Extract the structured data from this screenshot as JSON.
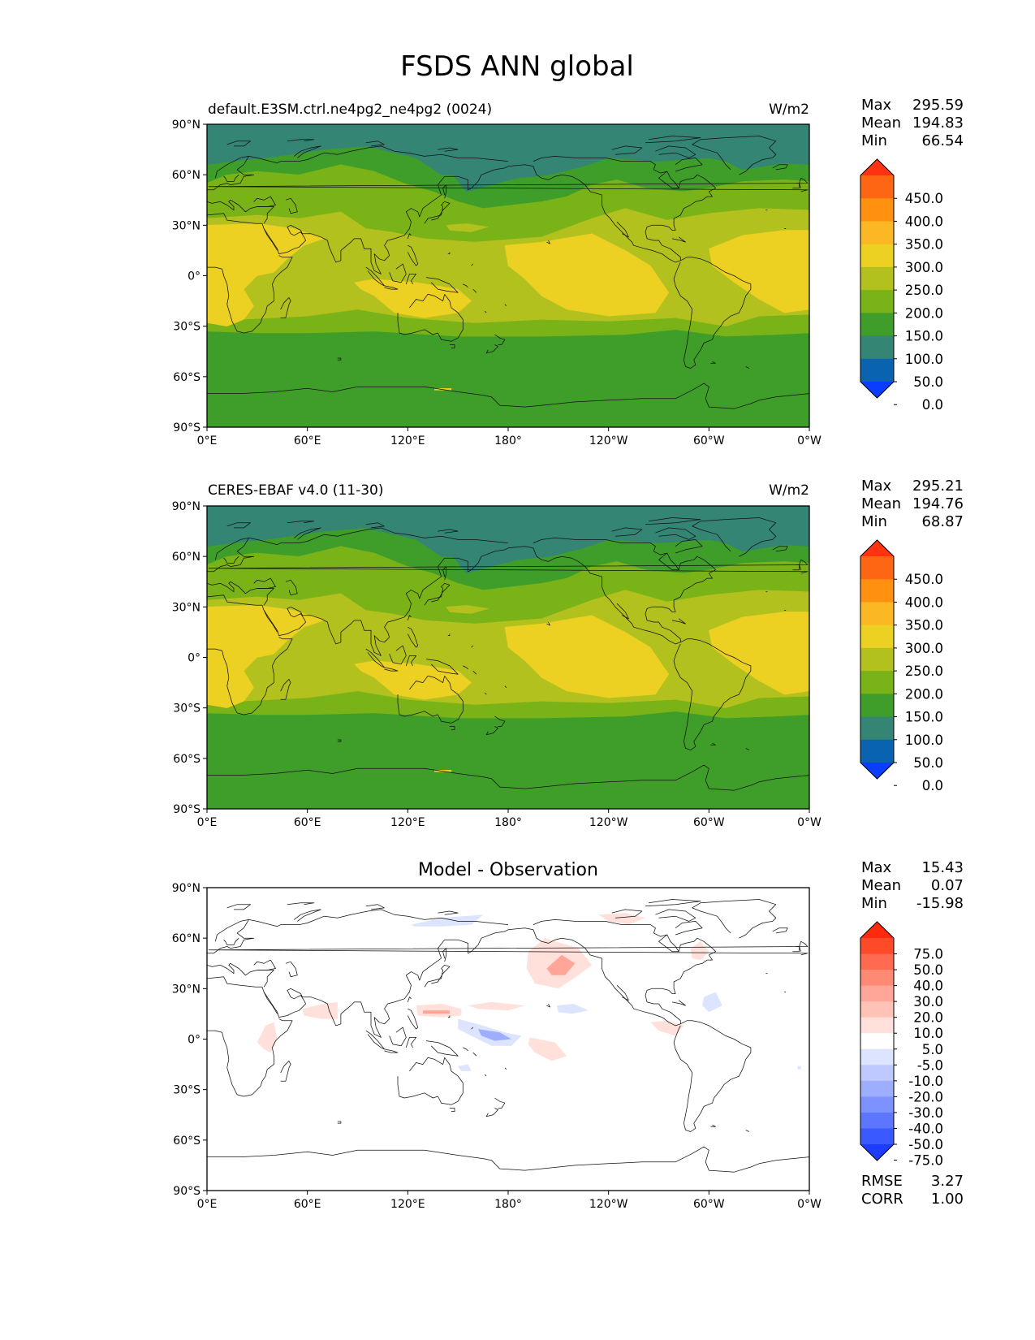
{
  "title": "FSDS ANN global",
  "map_axes": {
    "lon_ticks": [
      "0°E",
      "60°E",
      "120°E",
      "180°",
      "120°W",
      "60°W",
      "0°W"
    ],
    "lat_ticks": [
      "90°N",
      "60°N",
      "30°N",
      "0°",
      "30°S",
      "60°S",
      "90°S"
    ]
  },
  "stats_labels": {
    "max": "Max",
    "mean": "Mean",
    "min": "Min",
    "rmse": "RMSE",
    "corr": "CORR"
  },
  "panels": [
    {
      "title": "default.E3SM.ctrl.ne4pg2_ne4pg2 (0024)",
      "units": "W/m2",
      "stats": {
        "max": "295.59",
        "mean": "194.83",
        "min": "66.54"
      }
    },
    {
      "title": "CERES-EBAF v4.0 (11-30)",
      "units": "W/m2",
      "stats": {
        "max": "295.21",
        "mean": "194.76",
        "min": "68.87"
      }
    },
    {
      "title": "Model - Observation",
      "units": "",
      "stats": {
        "max": "15.43",
        "mean": "0.07",
        "min": "-15.98",
        "rmse": "3.27",
        "corr": "1.00"
      }
    }
  ],
  "colorbar_field": {
    "labels": [
      "450.0",
      "400.0",
      "350.0",
      "300.0",
      "250.0",
      "200.0",
      "150.0",
      "100.0",
      "50.0",
      "0.0"
    ],
    "colors_top_to_bottom": [
      "#ff3311",
      "#ff6614",
      "#ff9010",
      "#fbb724",
      "#ecd022",
      "#b3c11e",
      "#7ab317",
      "#3f9e2a",
      "#348574",
      "#0a63b0",
      "#0a3dff"
    ]
  },
  "colorbar_diff": {
    "labels": [
      "75.0",
      "50.0",
      "40.0",
      "30.0",
      "20.0",
      "10.0",
      "5.0",
      "-5.0",
      "-10.0",
      "-20.0",
      "-30.0",
      "-40.0",
      "-50.0",
      "-75.0"
    ],
    "colors_top_to_bottom": [
      "#ff2a0e",
      "#ff4a2a",
      "#ff6a50",
      "#ff8a74",
      "#ffa698",
      "#ffc2b6",
      "#ffe0da",
      "#ffffff",
      "#dce4ff",
      "#bec9ff",
      "#9eaeff",
      "#7d92ff",
      "#5c76ff",
      "#3a59ff",
      "#1e3cff"
    ]
  },
  "map_colors": {
    "teal": "#348574",
    "dark_green": "#3f9e2a",
    "green": "#7ab317",
    "olive": "#b3c11e",
    "yellow": "#ecd022",
    "diff_light_red": "#ffe0da",
    "diff_red": "#ffa698",
    "diff_light_blue": "#dce4ff",
    "diff_blue": "#9eaeff"
  }
}
